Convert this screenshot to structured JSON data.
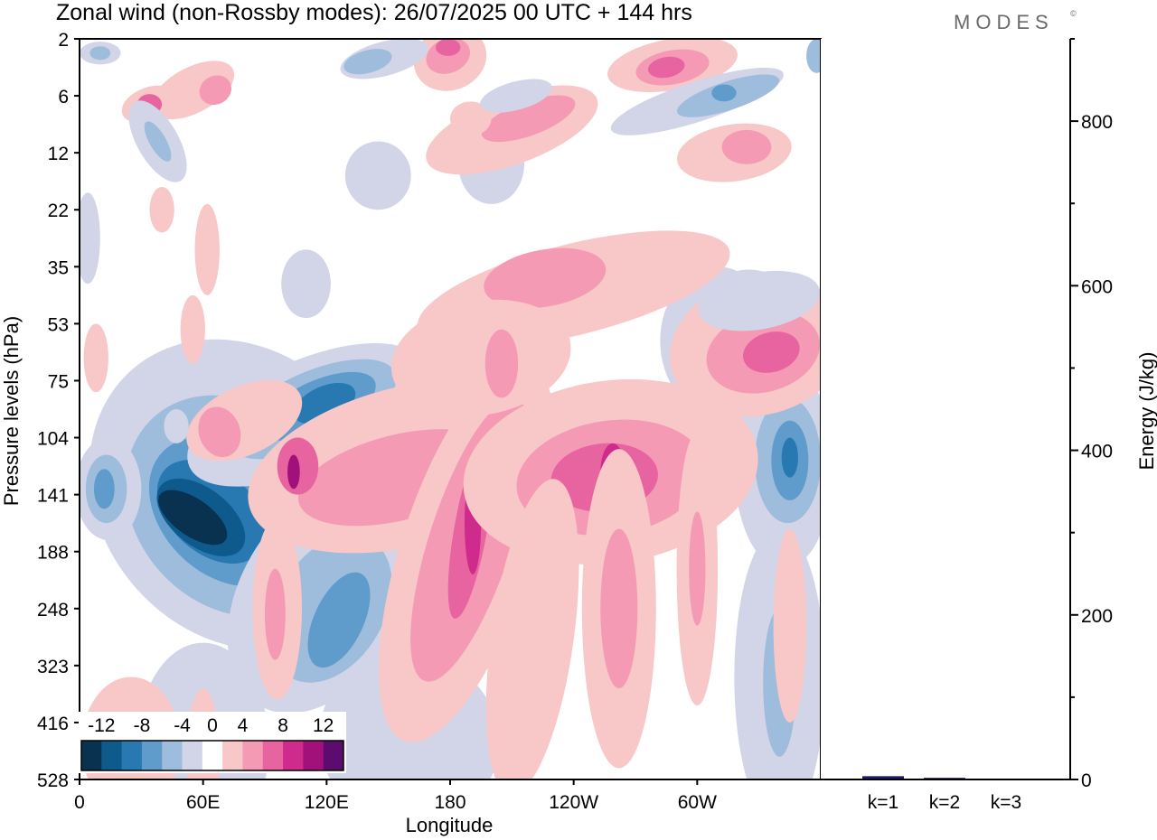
{
  "title": "Zonal wind (non-Rossby modes):  26/07/2025  00 UTC  + 144 hrs",
  "brand": "MODES",
  "brand_mark": "©",
  "colors": {
    "neg_-12": "#08324f",
    "neg_-10": "#0e5a8c",
    "neg_-8": "#2878b2",
    "neg_-6": "#5f9ccb",
    "neg_-4": "#9ebcdc",
    "neg_-2": "#d2d5e8",
    "zero": "#ffffff",
    "pos_2": "#f8c7c7",
    "pos_4": "#f49ab5",
    "pos_6": "#e864a0",
    "pos_8": "#cf2b8c",
    "pos_10": "#a2107a",
    "pos_12": "#5c0b6e",
    "bar": "#1a1a6e"
  },
  "chart_data": [
    {
      "type": "heatmap",
      "title": "Zonal wind (non-Rossby modes):  26/07/2025  00 UTC  + 144 hrs",
      "xlabel": "Longitude",
      "ylabel": "Pressure levels (hPa)",
      "xticks": [
        "0",
        "60E",
        "120E",
        "180",
        "120W",
        "60W"
      ],
      "xtick_degrees": [
        0,
        60,
        120,
        180,
        240,
        300
      ],
      "xlim": [
        0,
        360
      ],
      "yticks": [
        "2",
        "6",
        "12",
        "22",
        "35",
        "53",
        "75",
        "104",
        "141",
        "188",
        "248",
        "323",
        "416",
        "528"
      ],
      "colorbar": {
        "levels": [
          -14,
          -12,
          -10,
          -8,
          -6,
          -4,
          -2,
          2,
          4,
          6,
          8,
          10,
          12,
          14
        ],
        "labels": [
          "-12",
          "-8",
          "-4",
          "0",
          "4",
          "8",
          "12"
        ],
        "label_values": [
          -12,
          -8,
          -4,
          0,
          4,
          8,
          12
        ],
        "placement": "bottom-left inset"
      },
      "features": [
        {
          "name": "easterly core",
          "lon": 60,
          "level_index": 8.2,
          "value": -14
        },
        {
          "name": "easterly band upper",
          "lon": 118,
          "level_index": 6.4,
          "value": -10
        },
        {
          "name": "easterly lower",
          "lon": 125,
          "level_index": 10.2,
          "value": -6
        },
        {
          "name": "easterly dateline",
          "lon": 345,
          "level_index": 7.4,
          "value": -8
        },
        {
          "name": "westerly tilted",
          "lon": 190,
          "level_index": 8.7,
          "value": 8
        },
        {
          "name": "westerly",
          "lon": 257,
          "level_index": 7.7,
          "value": 8
        },
        {
          "name": "westerly",
          "lon": 104,
          "level_index": 7.6,
          "value": 8
        },
        {
          "name": "westerly upper",
          "lon": 179,
          "level_index": 0.2,
          "value": 10
        },
        {
          "name": "westerly upper",
          "lon": 286,
          "level_index": 0.5,
          "value": 8
        }
      ]
    },
    {
      "type": "bar",
      "title": "",
      "xlabel": "",
      "ylabel": "Energy (J/kg)",
      "categories": [
        "k=1",
        "k=2",
        "k=3"
      ],
      "values": [
        4,
        2,
        1
      ],
      "ylim": [
        0,
        900
      ],
      "yticks": [
        0,
        200,
        400,
        600,
        800
      ],
      "yticks_labels": [
        "0",
        "200",
        "400",
        "600",
        "800"
      ]
    }
  ]
}
